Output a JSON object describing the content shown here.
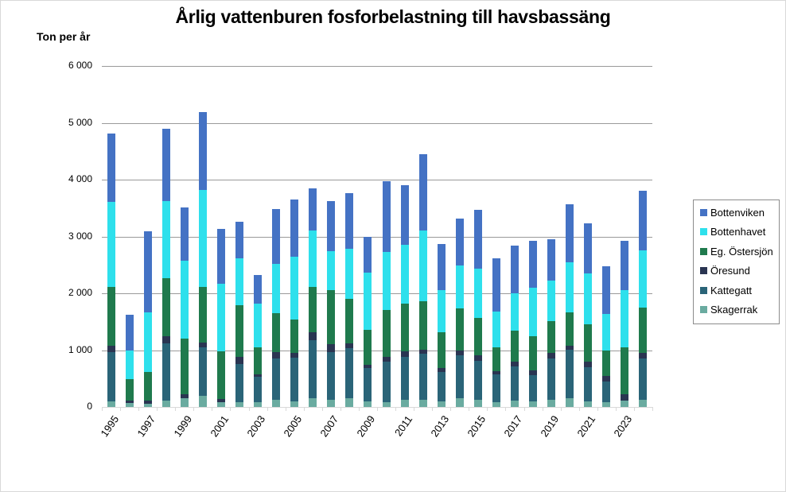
{
  "chart_data": {
    "type": "bar",
    "stacked": true,
    "title": "Årlig vattenburen fosforbelastning till havsbassäng",
    "ylabel": "Ton per år",
    "xlabel": "",
    "ylim": [
      0,
      6000
    ],
    "yticks": [
      "0",
      "1 000",
      "2 000",
      "3 000",
      "4 000",
      "5 000",
      "6 000"
    ],
    "xtick_labels": [
      "1995",
      "1997",
      "1999",
      "2001",
      "2003",
      "2005",
      "2007",
      "2009",
      "2011",
      "2013",
      "2015",
      "2017",
      "2019",
      "2021",
      "2023"
    ],
    "grid": true,
    "legend_position": "right",
    "categories": [
      "1995",
      "1996",
      "1997",
      "1998",
      "1999",
      "2000",
      "2001",
      "2002",
      "2003",
      "2004",
      "2005",
      "2006",
      "2007",
      "2008",
      "2009",
      "2010",
      "2011",
      "2012",
      "2013",
      "2014",
      "2015",
      "2016",
      "2017",
      "2018",
      "2019",
      "2020",
      "2021",
      "2022",
      "2023",
      "2024"
    ],
    "series": [
      {
        "name": "Skagerrak",
        "color": "#6AABA0",
        "values": [
          100,
          70,
          60,
          110,
          150,
          200,
          80,
          90,
          80,
          120,
          100,
          150,
          120,
          160,
          100,
          80,
          120,
          130,
          100,
          150,
          120,
          90,
          110,
          100,
          120,
          160,
          100,
          80,
          110,
          130
        ]
      },
      {
        "name": "Kattegatt",
        "color": "#2A6478",
        "values": [
          870,
          0,
          0,
          1010,
          0,
          850,
          0,
          670,
          450,
          740,
          770,
          1020,
          840,
          870,
          580,
          720,
          760,
          810,
          520,
          760,
          690,
          490,
          600,
          460,
          740,
          850,
          600,
          370,
          0,
          720
        ]
      },
      {
        "name": "Öresund",
        "color": "#2A3552",
        "values": [
          110,
          40,
          50,
          130,
          80,
          90,
          60,
          120,
          50,
          100,
          80,
          140,
          150,
          90,
          60,
          80,
          100,
          70,
          70,
          90,
          100,
          50,
          90,
          80,
          90,
          70,
          100,
          90,
          120,
          100
        ]
      },
      {
        "name": "Eg. Östersjön",
        "color": "#1F7A4D",
        "values": [
          1030,
          380,
          510,
          1020,
          980,
          970,
          840,
          910,
          470,
          690,
          590,
          800,
          940,
          780,
          620,
          830,
          840,
          850,
          620,
          740,
          660,
          420,
          540,
          600,
          560,
          590,
          660,
          450,
          820,
          800
        ]
      },
      {
        "name": "Bottenhavet",
        "color": "#2EE0EC",
        "values": [
          1500,
          500,
          1040,
          1360,
          1360,
          1710,
          1190,
          830,
          770,
          870,
          1100,
          990,
          690,
          880,
          1010,
          1020,
          1030,
          1250,
          750,
          750,
          870,
          630,
          660,
          860,
          720,
          880,
          890,
          640,
          1010,
          1010
        ]
      },
      {
        "name": "Bottenviken",
        "color": "#4472C4",
        "values": [
          1200,
          630,
          1430,
          1260,
          940,
          1370,
          960,
          640,
          500,
          970,
          1010,
          750,
          880,
          980,
          630,
          1240,
          1050,
          1340,
          810,
          820,
          1030,
          940,
          840,
          830,
          720,
          1020,
          880,
          850,
          870,
          1040
        ]
      }
    ]
  },
  "legend": {
    "items": [
      {
        "label": "Bottenviken",
        "color": "#4472C4"
      },
      {
        "label": "Bottenhavet",
        "color": "#2EE0EC"
      },
      {
        "label": "Eg. Östersjön",
        "color": "#1F7A4D"
      },
      {
        "label": "Öresund",
        "color": "#2A3552"
      },
      {
        "label": "Kattegatt",
        "color": "#2A6478"
      },
      {
        "label": "Skagerrak",
        "color": "#6AABA0"
      }
    ]
  }
}
